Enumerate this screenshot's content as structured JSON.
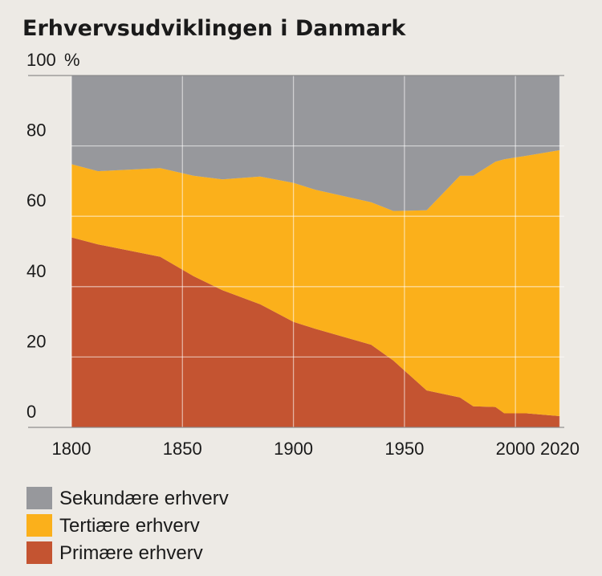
{
  "chart_data": {
    "type": "area",
    "title": "Erhvervsudviklingen i Danmark",
    "y_unit": "%",
    "xlim": [
      1800,
      2022
    ],
    "ylim": [
      0,
      100
    ],
    "x_ticks": [
      1800,
      1850,
      1900,
      1950,
      2000,
      2020
    ],
    "y_ticks": [
      0,
      20,
      40,
      60,
      80,
      100
    ],
    "grid": true,
    "stacked": true,
    "legend_position": "bottom-left",
    "series": [
      {
        "name": "Primære erhverv",
        "color": "#c45431",
        "x": [
          1800,
          1812,
          1840,
          1855,
          1868,
          1885,
          1900,
          1910,
          1935,
          1945,
          1960,
          1975,
          1981,
          1991,
          1995,
          2005,
          2020
        ],
        "values": [
          54,
          52,
          48.5,
          43,
          39,
          35,
          30,
          28,
          23.5,
          19,
          10.5,
          8.5,
          6,
          5.8,
          4,
          4,
          3.2
        ]
      },
      {
        "name": "Tertiære erhverv",
        "color": "#fbb01b",
        "x": [
          1800,
          1812,
          1840,
          1855,
          1868,
          1885,
          1900,
          1910,
          1935,
          1945,
          1960,
          1975,
          1981,
          1991,
          1995,
          2005,
          2020
        ],
        "values": [
          20.8,
          20.8,
          25.2,
          28.5,
          31.5,
          36.3,
          39.5,
          39.5,
          40.5,
          42.5,
          51.2,
          63,
          65.5,
          69.7,
          72.2,
          73.2,
          75.6
        ]
      },
      {
        "name": "Sekundære erhverv",
        "color": "#97989c",
        "x": [
          1800,
          1812,
          1840,
          1855,
          1868,
          1885,
          1900,
          1910,
          1935,
          1945,
          1960,
          1975,
          1981,
          1991,
          1995,
          2005,
          2020
        ],
        "values": [
          25.2,
          27.2,
          26.3,
          28.5,
          29.5,
          28.7,
          30.5,
          32.5,
          36,
          38.5,
          38.3,
          28.5,
          28.5,
          24.5,
          23.8,
          22.8,
          21.2
        ]
      }
    ],
    "legend_order": [
      "Sekundære erhverv",
      "Tertiære erhverv",
      "Primære erhverv"
    ]
  }
}
